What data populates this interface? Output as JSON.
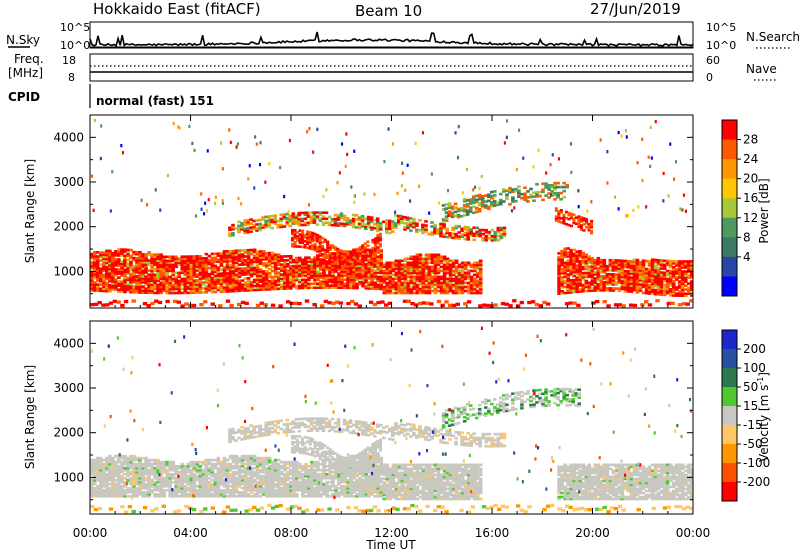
{
  "header": {
    "title": "Hokkaido East (fitACF)",
    "beam": "Beam 10",
    "date": "27/Jun/2019"
  },
  "nsky_panel": {
    "left_label": "N.Sky",
    "right_label": "N.Search",
    "left_ticks": [
      "10^5",
      "10^0"
    ],
    "right_ticks": [
      "10^5",
      "10^0"
    ]
  },
  "freq_panel": {
    "left_label_top": "Freq.",
    "left_label_unit": "[MHz]",
    "right_label": "Nave",
    "left_ticks": [
      "18",
      "8"
    ],
    "right_ticks": [
      "60",
      "0"
    ]
  },
  "cpid_panel": {
    "label": "CPID",
    "mode_text": "normal (fast) 151"
  },
  "colors": {
    "power_scale": [
      "#0000ff",
      "#2a44a8",
      "#3a7a64",
      "#4e9a5c",
      "#a8c83a",
      "#ffc800",
      "#ff9600",
      "#ff5a00",
      "#ff0000"
    ],
    "velocity_scale": [
      "#1e28c8",
      "#2850a0",
      "#2e7850",
      "#50c832",
      "#c8c8c0",
      "#ffc864",
      "#ff9600",
      "#ff5000",
      "#ff0000"
    ],
    "ground_scatter": "#c8c8c0"
  },
  "chart_data": [
    {
      "type": "heatmap",
      "name": "power",
      "ylabel": "Slant Range [km]",
      "xlabel": "",
      "xlim": [
        "00:00",
        "00:00"
      ],
      "ylim": [
        180,
        4500
      ],
      "yticks": [
        1000,
        2000,
        3000,
        4000
      ],
      "colorbar": {
        "label": "Power [dB]",
        "range": [
          0,
          32
        ],
        "ticks": [
          4,
          8,
          12,
          16,
          20,
          24,
          28
        ]
      },
      "regions": [
        {
          "x_start_h": 0.0,
          "x_end_h": 11.6,
          "range_km": [
            500,
            1500
          ],
          "level": "24-32 dB"
        },
        {
          "x_start_h": 8.0,
          "x_end_h": 11.0,
          "range_km": [
            1300,
            2200
          ],
          "level": "20-32 dB"
        },
        {
          "x_start_h": 11.5,
          "x_end_h": 15.5,
          "range_km": [
            1700,
            2500
          ],
          "level": "8-28 dB"
        },
        {
          "x_start_h": 14.0,
          "x_end_h": 18.5,
          "range_km": [
            2000,
            3000
          ],
          "level": "8-24 dB"
        },
        {
          "x_start_h": 18.5,
          "x_end_h": 24.0,
          "range_km": [
            500,
            1400
          ],
          "level": "24-32 dB"
        },
        {
          "x_start_h": 0.0,
          "x_end_h": 24.0,
          "range_km": [
            200,
            350
          ],
          "level": "20-32 dB"
        }
      ]
    },
    {
      "type": "heatmap",
      "name": "velocity",
      "ylabel": "Slant Range [km]",
      "xlabel": "Time UT",
      "xticks": [
        "00:00",
        "04:00",
        "08:00",
        "12:00",
        "16:00",
        "20:00",
        "00:00"
      ],
      "ylim": [
        180,
        4500
      ],
      "yticks": [
        1000,
        2000,
        3000,
        4000
      ],
      "colorbar": {
        "label": "Velocity [m s^-1]",
        "ticks": [
          "200",
          "100",
          "50",
          "15",
          "-15",
          "-50",
          "-100",
          "-200"
        ]
      },
      "regions": [
        {
          "x_start_h": 0.0,
          "x_end_h": 24.0,
          "range_km": [
            500,
            2200
          ],
          "level": "ground scatter (-15 to 15)"
        },
        {
          "x_start_h": 0.0,
          "x_end_h": 24.0,
          "range_km": [
            200,
            400
          ],
          "level": "-50 to -100"
        },
        {
          "x_start_h": 15.0,
          "x_end_h": 18.5,
          "range_km": [
            2200,
            3000
          ],
          "level": "15 to 100"
        }
      ]
    }
  ]
}
